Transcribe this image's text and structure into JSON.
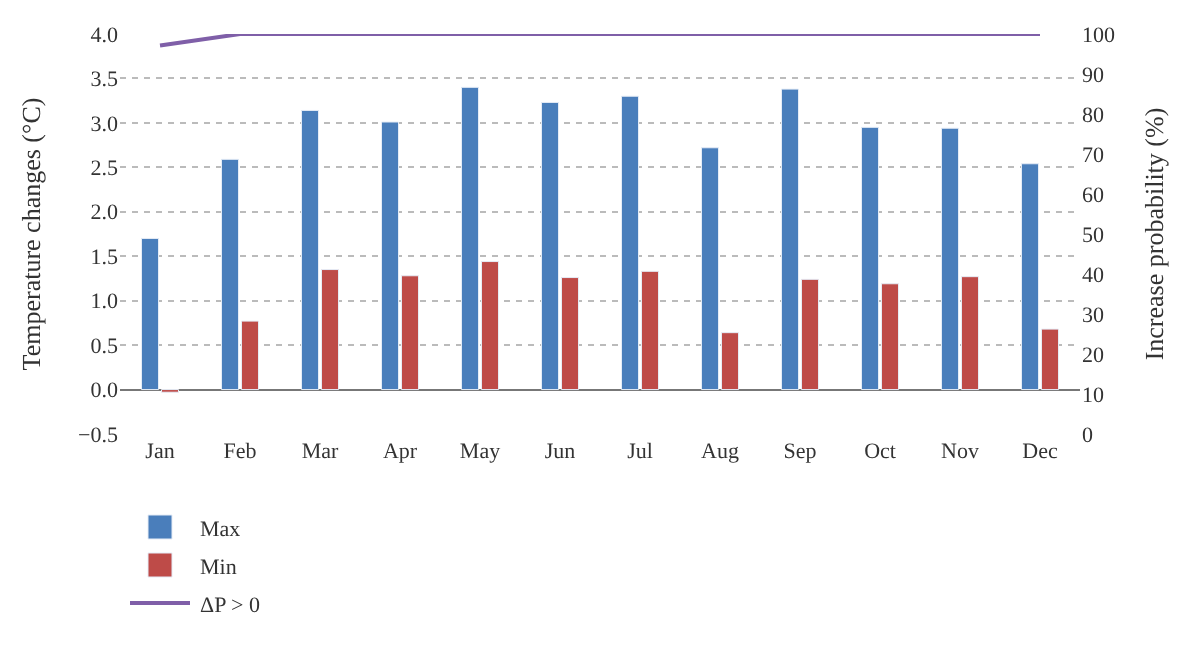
{
  "chart_data": {
    "type": "bar",
    "ylabel": "Temperature changes (°C)",
    "y2label": "Increase probability (%)",
    "categories": [
      "Jan",
      "Feb",
      "Mar",
      "Apr",
      "May",
      "Jun",
      "Jul",
      "Aug",
      "Sep",
      "Oct",
      "Nov",
      "Dec"
    ],
    "series": [
      {
        "name": "Max",
        "color": "#4a7ebb",
        "values": [
          1.7,
          2.59,
          3.14,
          3.01,
          3.4,
          3.23,
          3.3,
          2.72,
          3.38,
          2.95,
          2.94,
          2.54
        ]
      },
      {
        "name": "Min",
        "color": "#be4b48",
        "values": [
          -0.03,
          0.77,
          1.35,
          1.28,
          1.44,
          1.26,
          1.33,
          0.64,
          1.24,
          1.19,
          1.27,
          0.68
        ]
      },
      {
        "name": "ΔP > 0",
        "type": "line",
        "axis": "y2",
        "color": "#7f5fa8",
        "marker": "none",
        "values": [
          97.1,
          100,
          100,
          100,
          100,
          100,
          100,
          100,
          100,
          100,
          100,
          100
        ]
      }
    ],
    "ylim": [
      -0.5,
      4.0
    ],
    "yticks": [
      {
        "value": -0.5,
        "label": "−0.5"
      },
      {
        "value": 0,
        "label": "0.0"
      },
      {
        "value": 0.5,
        "label": "0.5"
      },
      {
        "value": 1,
        "label": "1.0"
      },
      {
        "value": 1.5,
        "label": "1.5"
      },
      {
        "value": 2,
        "label": "2.0"
      },
      {
        "value": 2.5,
        "label": "2.5"
      },
      {
        "value": 3,
        "label": "3.0"
      },
      {
        "value": 3.5,
        "label": "3.5"
      },
      {
        "value": 4,
        "label": "4.0"
      }
    ],
    "y2lim": [
      0,
      100
    ],
    "y2ticks": [
      0,
      10,
      20,
      30,
      40,
      50,
      60,
      70,
      80,
      90,
      100
    ],
    "grid": "y",
    "legend": "bottom left"
  }
}
